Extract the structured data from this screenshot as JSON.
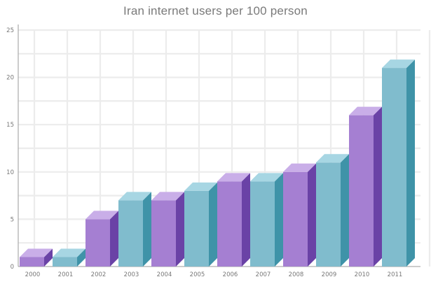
{
  "chart_data": {
    "type": "bar",
    "title": "Iran internet users per 100 person",
    "xlabel": "",
    "ylabel": "",
    "categories": [
      "2000",
      "2001",
      "2002",
      "2003",
      "2004",
      "2005",
      "2006",
      "2007",
      "2008",
      "2009",
      "2010",
      "2011"
    ],
    "values": [
      1,
      1,
      5,
      7,
      7,
      8,
      9,
      9,
      10,
      11,
      16,
      21
    ],
    "ylim": [
      0,
      25
    ],
    "yticks": [
      0,
      5,
      10,
      15,
      20,
      25
    ],
    "grid": true,
    "style": "3d",
    "colors": {
      "purple_front": "#a57fd2",
      "purple_side": "#6a42a6",
      "purple_top": "#c9aee8",
      "teal_front": "#80bccd",
      "teal_side": "#3f93a8",
      "teal_top": "#a7d6e3"
    },
    "color_pattern": [
      "purple",
      "teal",
      "purple",
      "teal",
      "purple",
      "teal",
      "purple",
      "teal",
      "purple",
      "teal",
      "purple",
      "teal"
    ]
  }
}
